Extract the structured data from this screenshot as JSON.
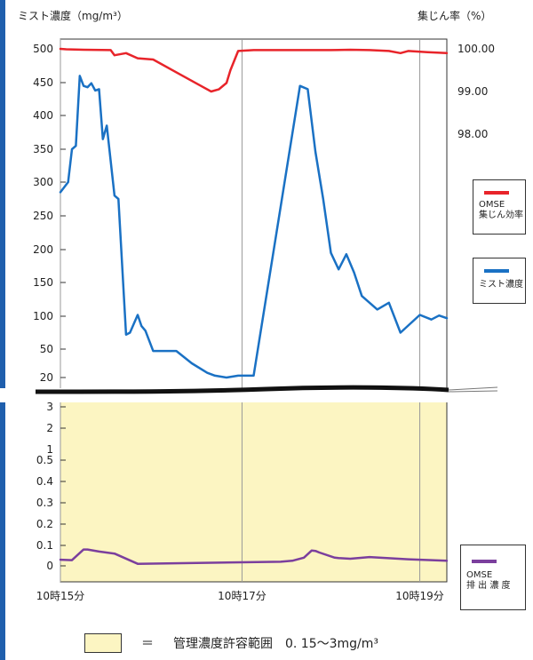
{
  "chart_data": {
    "type": "line",
    "y_left_label": "ミスト濃度（mg/m³）",
    "y_right_label": "集じん率（%）",
    "upper_y_ticks": [
      500,
      450,
      400,
      350,
      300,
      250,
      200,
      150,
      100,
      50,
      20
    ],
    "lower_y_ticks": [
      "3",
      "2",
      "1\n0.5",
      "0.4",
      "0.3",
      "0.2",
      "0.1",
      "0"
    ],
    "right_ticks": [
      "100.00",
      "99.00",
      "98.00"
    ],
    "x_ticks": [
      "10時15分",
      "10時17分",
      "10時19分"
    ],
    "band": {
      "label": "管理濃度許容範囲",
      "range": "0.15〜3mg/m³",
      "color": "#fcf5c2"
    },
    "series": [
      {
        "name": "OMSE 集じん効率",
        "color": "#e8242a",
        "unit": "%",
        "x": [
          0,
          1.5,
          6,
          13,
          14,
          17,
          20,
          24,
          31,
          37,
          39,
          41,
          43,
          44,
          46,
          50,
          70,
          75,
          80,
          85,
          88,
          90,
          95,
          100
        ],
        "y": [
          100.0,
          99.99,
          99.98,
          99.97,
          99.85,
          99.9,
          99.78,
          99.75,
          99.4,
          99.1,
          99.0,
          99.05,
          99.2,
          99.5,
          99.95,
          99.97,
          99.97,
          99.98,
          99.97,
          99.95,
          99.9,
          99.95,
          99.92,
          99.9
        ]
      },
      {
        "name": "ミスト濃度",
        "color": "#1a71c4",
        "unit": "mg/m³",
        "x": [
          0,
          2,
          3,
          4,
          5,
          6,
          7,
          8,
          9,
          10,
          11,
          12,
          14,
          15,
          17,
          18,
          20,
          21,
          22,
          24,
          30,
          34,
          38,
          40,
          43,
          46,
          50,
          62,
          64,
          66,
          68,
          70,
          72,
          74,
          76,
          78,
          82,
          85,
          88,
          93,
          96,
          98,
          100
        ],
        "y": [
          285,
          300,
          350,
          355,
          460,
          445,
          443,
          449,
          438,
          440,
          365,
          385,
          280,
          275,
          72,
          75,
          102,
          85,
          78,
          48,
          48,
          35,
          25,
          22,
          20,
          22,
          22,
          445,
          440,
          346,
          275,
          195,
          170,
          193,
          165,
          130,
          110,
          120,
          75,
          102,
          95,
          101,
          97
        ]
      },
      {
        "name": "OMSE 排出濃度",
        "color": "#7b3f9d",
        "unit": "mg/m³",
        "x": [
          0,
          3,
          6,
          7,
          10,
          14,
          20,
          57,
          60,
          63,
          65,
          66,
          67,
          71,
          72,
          75,
          80,
          90,
          100
        ],
        "y": [
          0.03,
          0.028,
          0.08,
          0.08,
          0.07,
          0.06,
          0.01,
          0.02,
          0.025,
          0.04,
          0.075,
          0.073,
          0.065,
          0.04,
          0.038,
          0.035,
          0.043,
          0.032,
          0.025
        ]
      }
    ]
  },
  "legends": [
    {
      "name": "OMSE\n集じん効率",
      "color": "#e8242a"
    },
    {
      "name": "ミスト濃度",
      "color": "#1a71c4"
    },
    {
      "name": "OMSE\n排 出 濃 度",
      "color": "#7b3f9d"
    }
  ],
  "bottom_legend": {
    "eq": "＝",
    "text": "管理濃度許容範囲　0. 15〜3mg/m³"
  }
}
